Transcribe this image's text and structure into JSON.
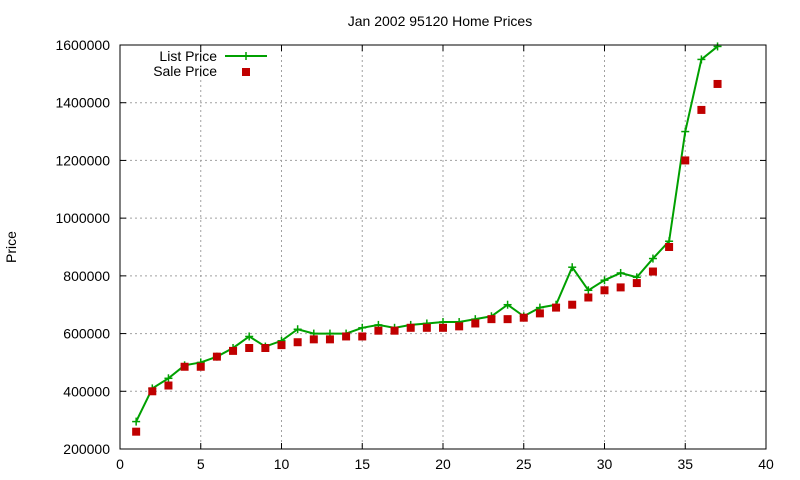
{
  "chart_data": {
    "type": "line",
    "title": "Jan 2002 95120 Home Prices",
    "xlabel": "",
    "ylabel": "Price",
    "xlim": [
      0,
      40
    ],
    "ylim": [
      200000,
      1600000
    ],
    "xticks": [
      0,
      5,
      10,
      15,
      20,
      25,
      30,
      35,
      40
    ],
    "yticks": [
      200000,
      400000,
      600000,
      800000,
      1000000,
      1200000,
      1400000,
      1600000
    ],
    "xtick_labels": [
      "0",
      "5",
      "10",
      "15",
      "20",
      "25",
      "30",
      "35",
      "40"
    ],
    "ytick_labels": [
      "200000",
      "400000",
      "600000",
      "800000",
      "1000000",
      "1200000",
      "1400000",
      "1600000"
    ],
    "grid": true,
    "legend_position": "top-left",
    "series": [
      {
        "name": "List Price",
        "style": "line-with-plus-markers",
        "color": "#00a000",
        "x": [
          1,
          2,
          3,
          4,
          5,
          6,
          7,
          8,
          9,
          10,
          11,
          12,
          13,
          14,
          15,
          16,
          17,
          18,
          19,
          20,
          21,
          22,
          23,
          24,
          25,
          26,
          27,
          28,
          29,
          30,
          31,
          32,
          33,
          34,
          35,
          36,
          37
        ],
        "y": [
          295000,
          410000,
          445000,
          490000,
          500000,
          520000,
          550000,
          590000,
          555000,
          575000,
          615000,
          600000,
          600000,
          600000,
          620000,
          630000,
          620000,
          630000,
          635000,
          640000,
          640000,
          650000,
          660000,
          700000,
          660000,
          690000,
          700000,
          830000,
          750000,
          785000,
          810000,
          795000,
          860000,
          920000,
          1300000,
          1550000,
          1595000
        ]
      },
      {
        "name": "Sale Price",
        "style": "square-markers",
        "color": "#c00000",
        "x": [
          1,
          2,
          3,
          4,
          5,
          6,
          7,
          8,
          9,
          10,
          11,
          12,
          13,
          14,
          15,
          16,
          17,
          18,
          19,
          20,
          21,
          22,
          23,
          24,
          25,
          26,
          27,
          28,
          29,
          30,
          31,
          32,
          33,
          34,
          35,
          36,
          37
        ],
        "y": [
          260000,
          400000,
          420000,
          485000,
          485000,
          520000,
          540000,
          550000,
          550000,
          560000,
          570000,
          580000,
          580000,
          590000,
          590000,
          610000,
          610000,
          620000,
          620000,
          620000,
          625000,
          635000,
          650000,
          650000,
          655000,
          670000,
          690000,
          700000,
          725000,
          750000,
          760000,
          775000,
          815000,
          900000,
          1200000,
          1375000,
          1465000
        ]
      }
    ]
  }
}
